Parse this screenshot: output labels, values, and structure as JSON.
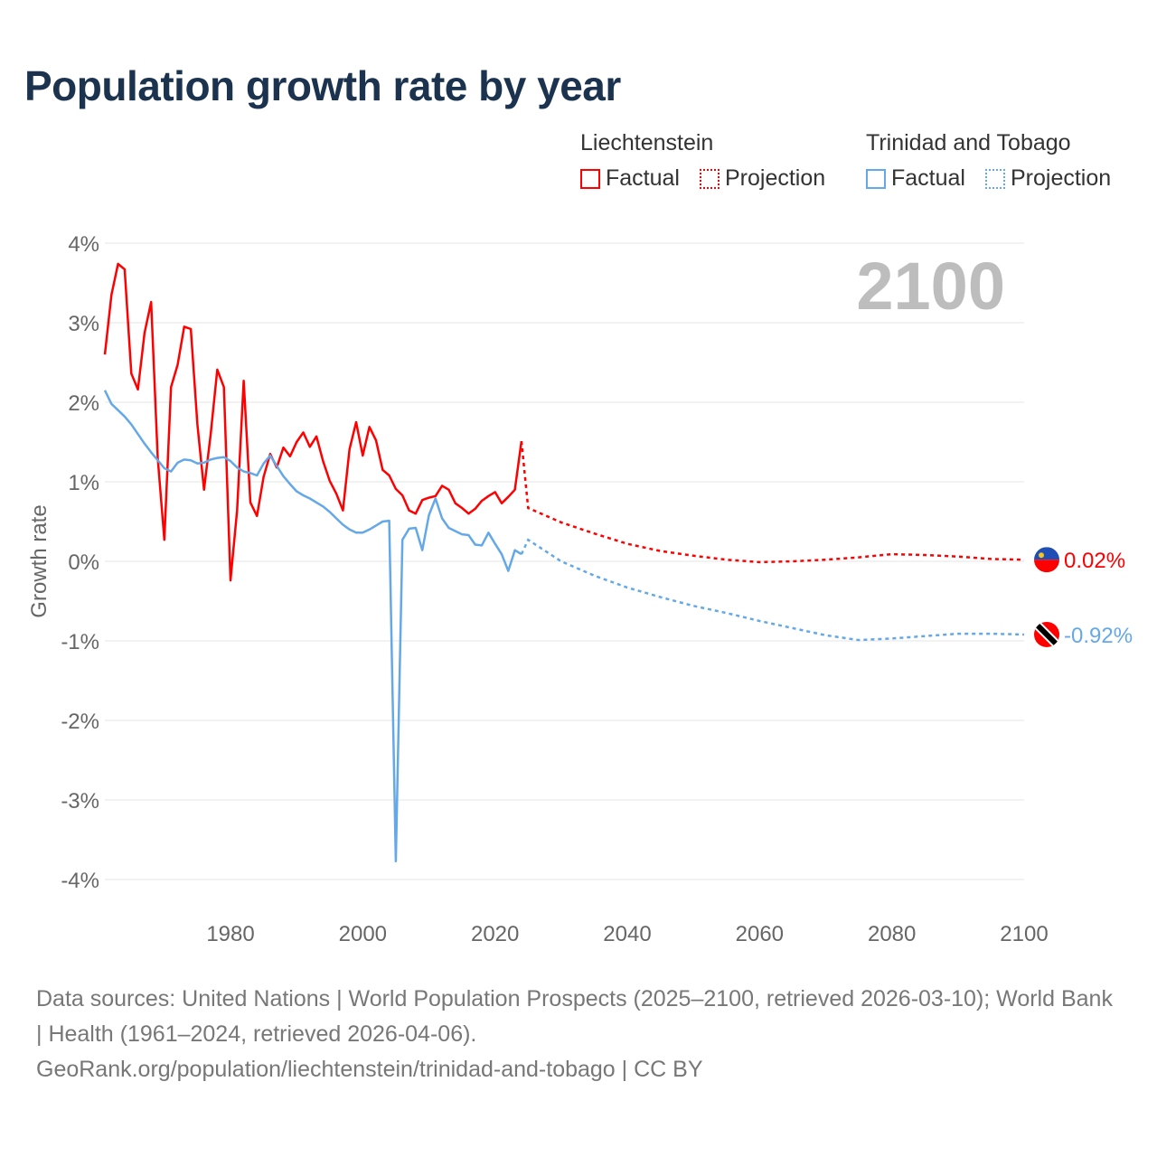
{
  "title": "Population growth rate by year",
  "legend": [
    {
      "country": "Liechtenstein",
      "color": "#ff0000",
      "factual": "Factual",
      "projection": "Projection"
    },
    {
      "country": "Trinidad and Tobago",
      "color": "#64a8e8",
      "factual": "Factual",
      "projection": "Projection"
    }
  ],
  "year_watermark": "2100",
  "footer": {
    "sources": "Data sources: United Nations | World Population Prospects (2025–2100, retrieved 2026-03-10); World Bank | Health (1961–2024, retrieved 2026-04-06).",
    "url": "GeoRank.org/population/liechtenstein/trinidad-and-tobago | CC BY"
  },
  "chart_data": {
    "type": "line",
    "title": "Population growth rate by year",
    "xlabel": "",
    "ylabel": "Growth rate",
    "xlim": [
      1961,
      2100
    ],
    "ylim": [
      -4,
      4
    ],
    "x_ticks": [
      "1980",
      "2000",
      "2020",
      "2040",
      "2060",
      "2080",
      "2100"
    ],
    "y_ticks": [
      "4%",
      "3%",
      "2%",
      "1%",
      "0%",
      "-1%",
      "-2%",
      "-3%",
      "-4%"
    ],
    "grid": true,
    "series": [
      {
        "name": "Liechtenstein",
        "color": "#ff0000",
        "end_label": "0.02%",
        "factual": {
          "x": [
            1961,
            1962,
            1963,
            1964,
            1965,
            1966,
            1967,
            1968,
            1969,
            1970,
            1971,
            1972,
            1973,
            1974,
            1975,
            1976,
            1977,
            1978,
            1979,
            1980,
            1981,
            1982,
            1983,
            1984,
            1985,
            1986,
            1987,
            1988,
            1989,
            1990,
            1991,
            1992,
            1993,
            1994,
            1995,
            1996,
            1997,
            1998,
            1999,
            2000,
            2001,
            2002,
            2003,
            2004,
            2005,
            2006,
            2007,
            2008,
            2009,
            2010,
            2011,
            2012,
            2013,
            2014,
            2015,
            2016,
            2017,
            2018,
            2019,
            2020,
            2021,
            2022,
            2023,
            2024
          ],
          "y": [
            2.6,
            3.35,
            3.74,
            3.67,
            2.36,
            2.16,
            2.87,
            3.26,
            1.3,
            0.27,
            2.19,
            2.47,
            2.95,
            2.92,
            1.72,
            0.9,
            1.6,
            2.41,
            2.19,
            -0.24,
            0.64,
            2.27,
            0.74,
            0.57,
            1.06,
            1.35,
            1.18,
            1.43,
            1.32,
            1.5,
            1.62,
            1.44,
            1.57,
            1.26,
            1.01,
            0.85,
            0.64,
            1.41,
            1.75,
            1.33,
            1.69,
            1.52,
            1.15,
            1.08,
            0.91,
            0.83,
            0.64,
            0.6,
            0.77,
            0.8,
            0.82,
            0.95,
            0.9,
            0.73,
            0.67,
            0.6,
            0.66,
            0.76,
            0.82,
            0.87,
            0.73,
            0.81,
            0.9,
            1.51
          ]
        },
        "projection": {
          "x": [
            2024,
            2025,
            2030,
            2035,
            2040,
            2045,
            2050,
            2055,
            2060,
            2065,
            2070,
            2075,
            2080,
            2085,
            2090,
            2095,
            2100
          ],
          "y": [
            1.51,
            0.67,
            0.49,
            0.35,
            0.22,
            0.13,
            0.07,
            0.02,
            -0.01,
            0.0,
            0.02,
            0.05,
            0.09,
            0.08,
            0.06,
            0.03,
            0.02
          ]
        }
      },
      {
        "name": "Trinidad and Tobago",
        "color": "#64a8e8",
        "end_label": "-0.92%",
        "factual": {
          "x": [
            1961,
            1962,
            1963,
            1964,
            1965,
            1966,
            1967,
            1968,
            1969,
            1970,
            1971,
            1972,
            1973,
            1974,
            1975,
            1976,
            1977,
            1978,
            1979,
            1980,
            1981,
            1982,
            1983,
            1984,
            1985,
            1986,
            1987,
            1988,
            1989,
            1990,
            1991,
            1992,
            1993,
            1994,
            1995,
            1996,
            1997,
            1998,
            1999,
            2000,
            2001,
            2002,
            2003,
            2004,
            2005,
            2006,
            2007,
            2008,
            2009,
            2010,
            2011,
            2012,
            2013,
            2014,
            2015,
            2016,
            2017,
            2018,
            2019,
            2020,
            2021,
            2022,
            2023,
            2024
          ],
          "y": [
            2.15,
            1.98,
            1.9,
            1.82,
            1.72,
            1.6,
            1.48,
            1.37,
            1.27,
            1.17,
            1.13,
            1.24,
            1.28,
            1.27,
            1.23,
            1.24,
            1.28,
            1.3,
            1.31,
            1.26,
            1.18,
            1.13,
            1.11,
            1.08,
            1.23,
            1.33,
            1.2,
            1.07,
            0.97,
            0.88,
            0.83,
            0.79,
            0.74,
            0.69,
            0.62,
            0.54,
            0.46,
            0.4,
            0.36,
            0.36,
            0.4,
            0.45,
            0.5,
            0.51,
            -3.77,
            0.27,
            0.41,
            0.42,
            0.14,
            0.58,
            0.79,
            0.54,
            0.42,
            0.38,
            0.34,
            0.33,
            0.21,
            0.2,
            0.36,
            0.22,
            0.09,
            -0.12,
            0.14,
            0.09
          ]
        },
        "projection": {
          "x": [
            2024,
            2025,
            2030,
            2035,
            2040,
            2045,
            2050,
            2055,
            2060,
            2065,
            2070,
            2075,
            2080,
            2085,
            2090,
            2095,
            2100
          ],
          "y": [
            0.09,
            0.27,
            0.0,
            -0.18,
            -0.33,
            -0.45,
            -0.56,
            -0.65,
            -0.75,
            -0.84,
            -0.93,
            -0.99,
            -0.97,
            -0.94,
            -0.91,
            -0.91,
            -0.92
          ]
        }
      }
    ]
  }
}
